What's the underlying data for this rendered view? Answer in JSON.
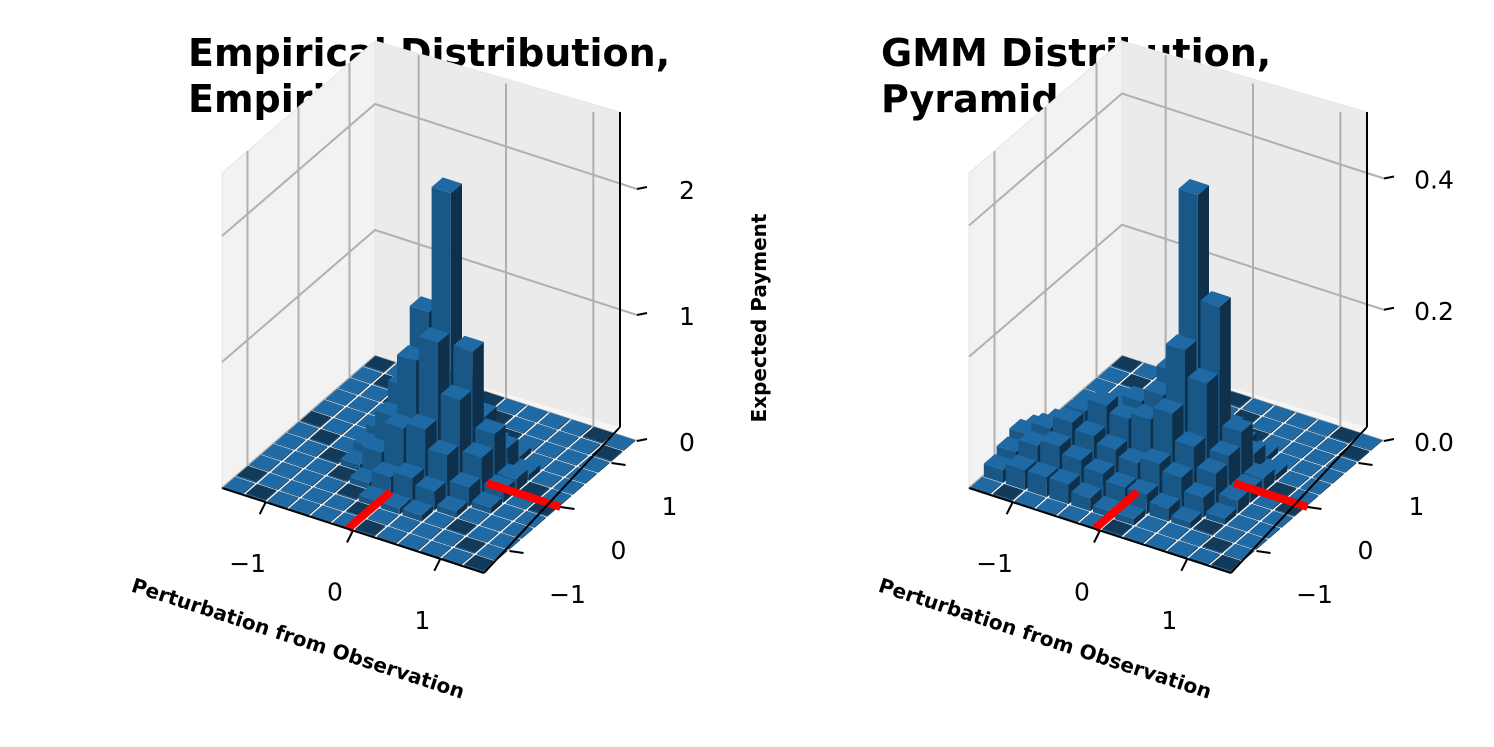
{
  "chart_data": [
    {
      "type": "bar3d",
      "title_line1": "Empirical Distribution,",
      "title_line2": "Empirical Update",
      "xlabel": "Perturbation from Observation",
      "ylabel": "",
      "zlabel": "Expected Payment",
      "xticks": [
        "−1",
        "0",
        "1"
      ],
      "yticks": [
        "−1",
        "0",
        "1"
      ],
      "zticks": [
        "0",
        "1",
        "2"
      ],
      "zlim": [
        0,
        2.5
      ],
      "grid_size": 12,
      "observation_marker_color": "#ff0000",
      "bar_color": "#1f6aa5",
      "peak": {
        "cell": [
          5,
          6
        ],
        "height": 2.2
      },
      "heights": [
        [
          0,
          0,
          0,
          0,
          0,
          0,
          0,
          0,
          0,
          0,
          0,
          0
        ],
        [
          0,
          0,
          0,
          0,
          0,
          0,
          0,
          0,
          0,
          0,
          0,
          0
        ],
        [
          0,
          0,
          0,
          0,
          0,
          0,
          0,
          0,
          0,
          0,
          0,
          0
        ],
        [
          0,
          0,
          0,
          0.05,
          0.1,
          0.15,
          0.15,
          0.1,
          0.05,
          0,
          0,
          0
        ],
        [
          0,
          0,
          0,
          0.1,
          0.3,
          0.5,
          0.6,
          0.4,
          0.2,
          0.05,
          0,
          0
        ],
        [
          0,
          0,
          0,
          0.15,
          0.55,
          1.2,
          2.2,
          1.0,
          0.4,
          0.1,
          0,
          0
        ],
        [
          0,
          0,
          0,
          0.1,
          0.4,
          0.9,
          1.1,
          0.7,
          0.3,
          0.1,
          0,
          0
        ],
        [
          0,
          0,
          0,
          0.05,
          0.2,
          0.45,
          0.5,
          0.35,
          0.15,
          0.05,
          0,
          0
        ],
        [
          0,
          0,
          0,
          0,
          0.05,
          0.15,
          0.2,
          0.15,
          0.05,
          0,
          0,
          0
        ],
        [
          0,
          0,
          0,
          0,
          0,
          0.05,
          0.05,
          0.05,
          0,
          0,
          0,
          0
        ],
        [
          0,
          0,
          0,
          0,
          0,
          0,
          0,
          0,
          0,
          0,
          0,
          0
        ],
        [
          0,
          0,
          0,
          0,
          0,
          0,
          0,
          0,
          0,
          0,
          0,
          0
        ]
      ]
    },
    {
      "type": "bar3d",
      "title_line1": "GMM Distribution,",
      "title_line2": "Pyramid Update",
      "xlabel": "Perturbation from Observation",
      "ylabel": "",
      "zlabel": "Expected Payment",
      "xticks": [
        "−1",
        "0",
        "1"
      ],
      "yticks": [
        "−1",
        "0",
        "1"
      ],
      "zticks": [
        "0.0",
        "0.2",
        "0.4"
      ],
      "zlim": [
        0,
        0.48
      ],
      "grid_size": 12,
      "observation_marker_color": "#ff0000",
      "bar_color": "#1f6aa5",
      "peak": {
        "cell": [
          5,
          6
        ],
        "height": 0.42
      },
      "heights": [
        [
          0,
          0,
          0,
          0,
          0,
          0,
          0,
          0,
          0,
          0,
          0,
          0
        ],
        [
          0,
          0,
          0,
          0,
          0,
          0,
          0,
          0,
          0,
          0,
          0,
          0
        ],
        [
          0,
          0,
          0,
          0,
          0,
          0,
          0,
          0,
          0,
          0,
          0,
          0
        ],
        [
          0,
          0,
          0,
          0,
          0.01,
          0.02,
          0.03,
          0.02,
          0.01,
          0,
          0,
          0
        ],
        [
          0,
          0,
          0.01,
          0.04,
          0.06,
          0.08,
          0.12,
          0.06,
          0.03,
          0.01,
          0,
          0
        ],
        [
          0,
          0,
          0.02,
          0.06,
          0.08,
          0.14,
          0.42,
          0.26,
          0.08,
          0.02,
          0,
          0
        ],
        [
          0.01,
          0.03,
          0.06,
          0.08,
          0.1,
          0.12,
          0.2,
          0.16,
          0.06,
          0.02,
          0,
          0
        ],
        [
          0.03,
          0.05,
          0.08,
          0.1,
          0.09,
          0.1,
          0.12,
          0.08,
          0.05,
          0.02,
          0,
          0
        ],
        [
          0.04,
          0.06,
          0.08,
          0.07,
          0.06,
          0.05,
          0.06,
          0.05,
          0.03,
          0.01,
          0,
          0
        ],
        [
          0.03,
          0.05,
          0.06,
          0.05,
          0.04,
          0.03,
          0.03,
          0.02,
          0.01,
          0,
          0,
          0
        ],
        [
          0.02,
          0.03,
          0.03,
          0.03,
          0.02,
          0.01,
          0.01,
          0,
          0,
          0,
          0,
          0
        ],
        [
          0,
          0,
          0,
          0,
          0,
          0,
          0,
          0,
          0,
          0,
          0,
          0
        ]
      ]
    }
  ]
}
